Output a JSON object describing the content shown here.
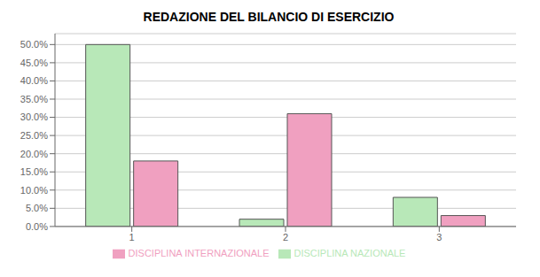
{
  "chart_data": {
    "type": "bar",
    "title": "REDAZIONE DEL BILANCIO DI ESERCIZIO",
    "categories": [
      "1",
      "2",
      "3"
    ],
    "series": [
      {
        "name": "DISCIPLINA NAZIONALE",
        "color": "#b8e8b8",
        "values": [
          50.0,
          2.0,
          8.0
        ]
      },
      {
        "name": "DISCIPLINA INTERNAZIONALE",
        "color": "#f0a0c0",
        "values": [
          18.0,
          31.0,
          3.0
        ]
      }
    ],
    "ylim": [
      0,
      53
    ],
    "yticks": [
      {
        "value": 0.0,
        "label": "0.0%"
      },
      {
        "value": 5.0,
        "label": "5.0%"
      },
      {
        "value": 10.0,
        "label": "10.0%"
      },
      {
        "value": 15.0,
        "label": "15.0%"
      },
      {
        "value": 20.0,
        "label": "20.0%"
      },
      {
        "value": 25.0,
        "label": "25.0%"
      },
      {
        "value": 30.0,
        "label": "30.0%"
      },
      {
        "value": 35.0,
        "label": "35.0%"
      },
      {
        "value": 40.0,
        "label": "40.0%"
      },
      {
        "value": 45.0,
        "label": "45.0%"
      },
      {
        "value": 50.0,
        "label": "50.0%"
      }
    ],
    "grid": true,
    "legend": "bottom"
  }
}
